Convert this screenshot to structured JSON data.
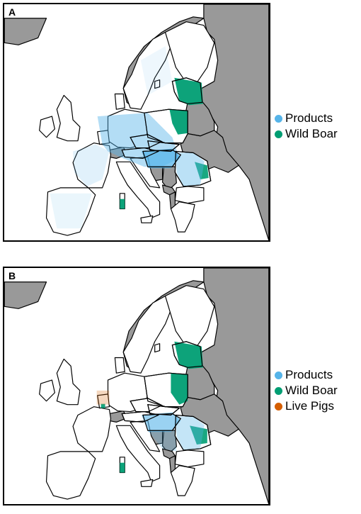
{
  "colors": {
    "products": "#56B4E9",
    "wild_boar": "#009E73",
    "live_pigs": "#D55E00",
    "non_eu": "#999999",
    "land": "#ffffff",
    "border": "#000000"
  },
  "panels": [
    {
      "label": "A",
      "legend": [
        {
          "label": "Products",
          "color": "#56B4E9"
        },
        {
          "label": "Wild Boar",
          "color": "#009E73"
        }
      ]
    },
    {
      "label": "B",
      "legend": [
        {
          "label": "Products",
          "color": "#56B4E9"
        },
        {
          "label": "Wild Boar",
          "color": "#009E73"
        },
        {
          "label": "Live Pigs",
          "color": "#D55E00"
        }
      ]
    }
  ]
}
